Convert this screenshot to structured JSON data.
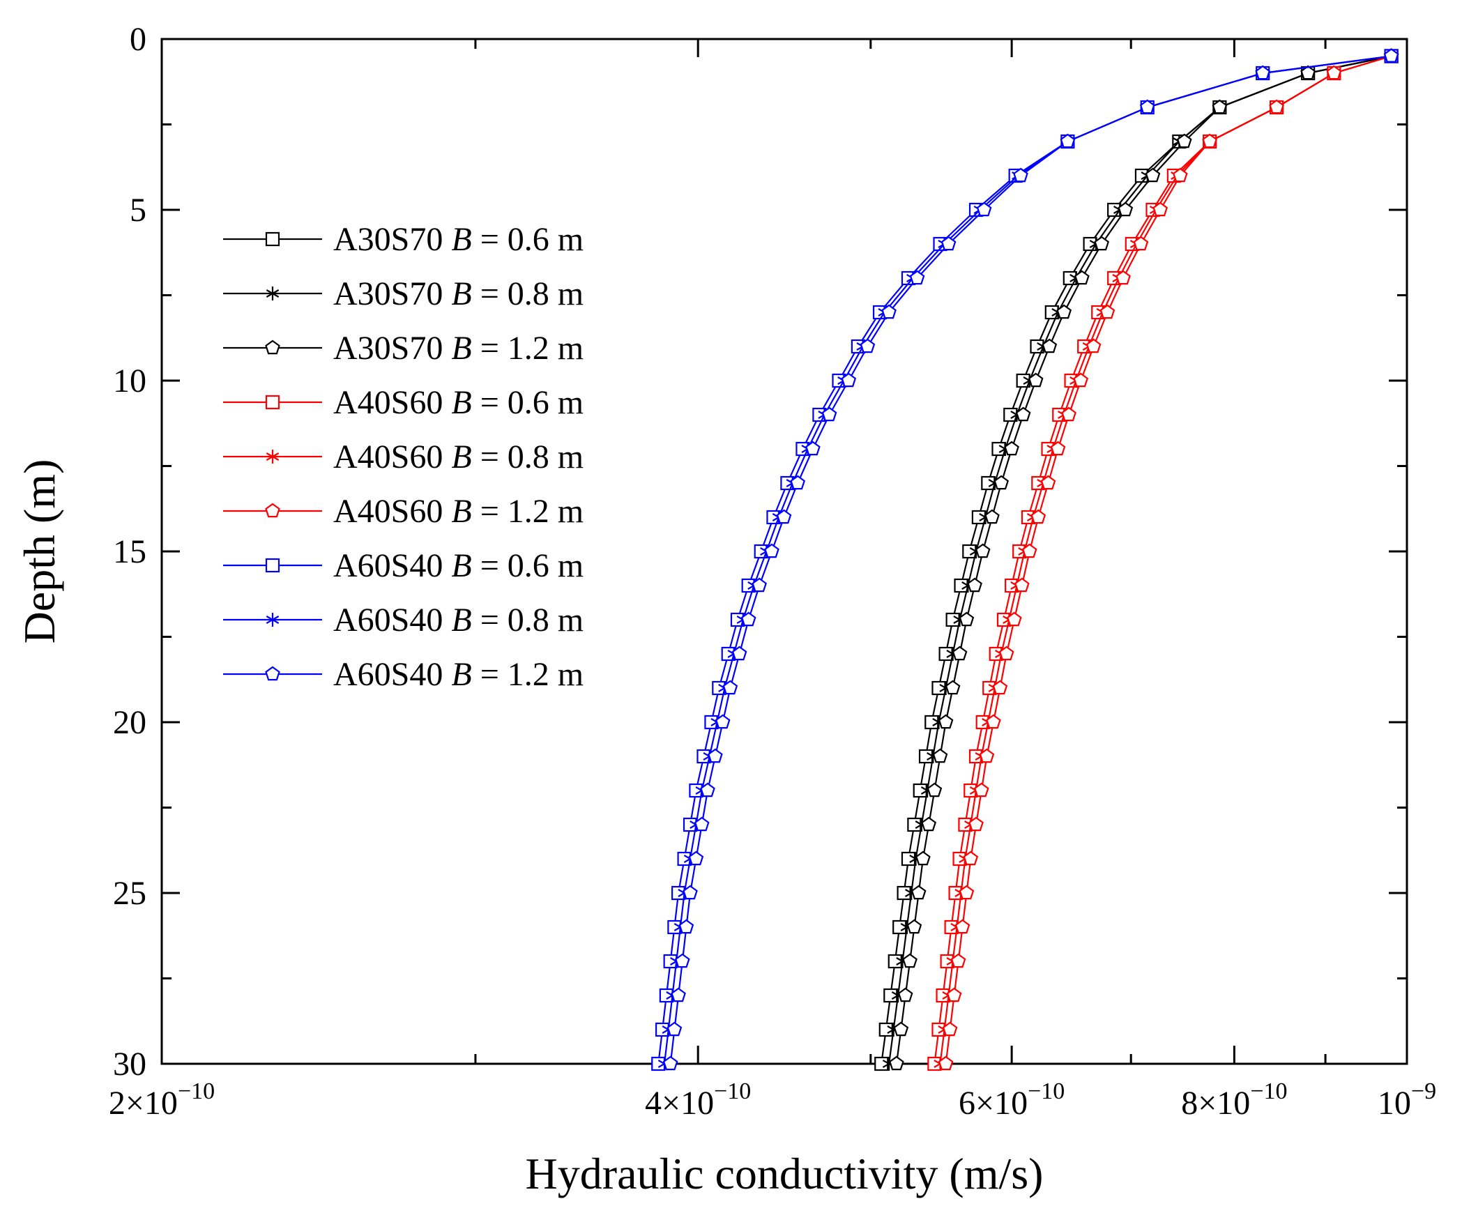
{
  "chart_data": {
    "type": "line",
    "title": "",
    "xlabel": "Hydraulic conductivity (m/s)",
    "ylabel": "Depth (m)",
    "xscale": "log",
    "xlim": [
      2e-10,
      1e-09
    ],
    "ylim": [
      0,
      30
    ],
    "y_inverted": true,
    "x_ticks": [
      {
        "value": 2e-10,
        "mantissa": "2",
        "exp": "−10"
      },
      {
        "value": 4e-10,
        "mantissa": "4",
        "exp": "−10"
      },
      {
        "value": 6e-10,
        "mantissa": "6",
        "exp": "−10"
      },
      {
        "value": 8e-10,
        "mantissa": "8",
        "exp": "−10"
      },
      {
        "value": 1e-09,
        "mantissa": "",
        "exp": "−9"
      }
    ],
    "y_ticks": [
      "0",
      "5",
      "10",
      "15",
      "20",
      "25",
      "30"
    ],
    "legend_position": "upper-left",
    "depth": [
      0.5,
      1,
      2,
      3,
      4,
      5,
      6,
      7,
      8,
      9,
      10,
      11,
      12,
      13,
      14,
      15,
      16,
      17,
      18,
      19,
      20,
      21,
      22,
      23,
      24,
      25,
      26,
      27,
      28,
      29,
      30
    ],
    "series": [
      {
        "name": "A30S70",
        "b": "0.6 m",
        "color": "#000000",
        "marker": "square",
        "values": [
          9.8e-10,
          8.8e-10,
          7.85e-10,
          7.45e-10,
          7.1e-10,
          6.85e-10,
          6.64e-10,
          6.47e-10,
          6.32e-10,
          6.2e-10,
          6.09e-10,
          5.99e-10,
          5.9e-10,
          5.82e-10,
          5.75e-10,
          5.68e-10,
          5.62e-10,
          5.56e-10,
          5.51e-10,
          5.46e-10,
          5.41e-10,
          5.37e-10,
          5.33e-10,
          5.29e-10,
          5.25e-10,
          5.22e-10,
          5.19e-10,
          5.16e-10,
          5.13e-10,
          5.1e-10,
          5.07e-10
        ]
      },
      {
        "name": "A30S70",
        "b": "0.8 m",
        "color": "#000000",
        "marker": "star",
        "values": [
          9.8e-10,
          8.8e-10,
          7.85e-10,
          7.45e-10,
          7.15e-10,
          6.9e-10,
          6.69e-10,
          6.52e-10,
          6.37e-10,
          6.25e-10,
          6.14e-10,
          6.04e-10,
          5.95e-10,
          5.87e-10,
          5.8e-10,
          5.73e-10,
          5.67e-10,
          5.61e-10,
          5.56e-10,
          5.51e-10,
          5.46e-10,
          5.42e-10,
          5.38e-10,
          5.34e-10,
          5.3e-10,
          5.27e-10,
          5.24e-10,
          5.21e-10,
          5.18e-10,
          5.15e-10,
          5.12e-10
        ]
      },
      {
        "name": "A30S70",
        "b": "1.2 m",
        "color": "#000000",
        "marker": "pentagon",
        "values": [
          9.8e-10,
          8.8e-10,
          7.85e-10,
          7.5e-10,
          7.2e-10,
          6.95e-10,
          6.74e-10,
          6.57e-10,
          6.42e-10,
          6.3e-10,
          6.19e-10,
          6.09e-10,
          6e-10,
          5.92e-10,
          5.85e-10,
          5.78e-10,
          5.72e-10,
          5.66e-10,
          5.61e-10,
          5.56e-10,
          5.51e-10,
          5.47e-10,
          5.43e-10,
          5.39e-10,
          5.35e-10,
          5.32e-10,
          5.29e-10,
          5.26e-10,
          5.23e-10,
          5.2e-10,
          5.17e-10
        ]
      },
      {
        "name": "A40S60",
        "b": "0.6 m",
        "color": "#ff0000",
        "marker": "square",
        "values": [
          9.8e-10,
          9.1e-10,
          8.45e-10,
          7.75e-10,
          7.4e-10,
          7.2e-10,
          7.01e-10,
          6.85e-10,
          6.71e-10,
          6.59e-10,
          6.48e-10,
          6.38e-10,
          6.29e-10,
          6.21e-10,
          6.13e-10,
          6.06e-10,
          6e-10,
          5.94e-10,
          5.88e-10,
          5.83e-10,
          5.78e-10,
          5.73e-10,
          5.69e-10,
          5.65e-10,
          5.61e-10,
          5.58e-10,
          5.55e-10,
          5.52e-10,
          5.49e-10,
          5.46e-10,
          5.43e-10
        ]
      },
      {
        "name": "A40S60",
        "b": "0.8 m",
        "color": "#ff0000",
        "marker": "star",
        "values": [
          9.8e-10,
          9.1e-10,
          8.45e-10,
          7.75e-10,
          7.43e-10,
          7.23e-10,
          7.05e-10,
          6.89e-10,
          6.75e-10,
          6.63e-10,
          6.52e-10,
          6.42e-10,
          6.33e-10,
          6.25e-10,
          6.17e-10,
          6.1e-10,
          6.04e-10,
          5.98e-10,
          5.92e-10,
          5.87e-10,
          5.82e-10,
          5.77e-10,
          5.73e-10,
          5.69e-10,
          5.65e-10,
          5.62e-10,
          5.59e-10,
          5.56e-10,
          5.53e-10,
          5.5e-10,
          5.47e-10
        ]
      },
      {
        "name": "A40S60",
        "b": "1.2 m",
        "color": "#ff0000",
        "marker": "pentagon",
        "values": [
          9.8e-10,
          9.1e-10,
          8.45e-10,
          7.75e-10,
          7.46e-10,
          7.27e-10,
          7.09e-10,
          6.93e-10,
          6.79e-10,
          6.67e-10,
          6.56e-10,
          6.46e-10,
          6.37e-10,
          6.29e-10,
          6.21e-10,
          6.14e-10,
          6.08e-10,
          6.02e-10,
          5.96e-10,
          5.91e-10,
          5.86e-10,
          5.81e-10,
          5.77e-10,
          5.73e-10,
          5.69e-10,
          5.66e-10,
          5.63e-10,
          5.6e-10,
          5.57e-10,
          5.54e-10,
          5.51e-10
        ]
      },
      {
        "name": "A60S40",
        "b": "0.6 m",
        "color": "#0000ff",
        "marker": "square",
        "values": [
          9.8e-10,
          8.3e-10,
          7.15e-10,
          6.45e-10,
          6.03e-10,
          5.73e-10,
          5.47e-10,
          5.25e-10,
          5.06e-10,
          4.92e-10,
          4.8e-10,
          4.68e-10,
          4.58e-10,
          4.49e-10,
          4.41e-10,
          4.34e-10,
          4.27e-10,
          4.21e-10,
          4.16e-10,
          4.11e-10,
          4.07e-10,
          4.03e-10,
          3.99e-10,
          3.96e-10,
          3.93e-10,
          3.9e-10,
          3.88e-10,
          3.86e-10,
          3.84e-10,
          3.82e-10,
          3.8e-10
        ]
      },
      {
        "name": "A60S40",
        "b": "0.8 m",
        "color": "#0000ff",
        "marker": "star",
        "values": [
          9.8e-10,
          8.3e-10,
          7.15e-10,
          6.45e-10,
          6.05e-10,
          5.76e-10,
          5.5e-10,
          5.28e-10,
          5.09e-10,
          4.95e-10,
          4.83e-10,
          4.71e-10,
          4.61e-10,
          4.52e-10,
          4.44e-10,
          4.37e-10,
          4.3e-10,
          4.24e-10,
          4.19e-10,
          4.14e-10,
          4.1e-10,
          4.06e-10,
          4.02e-10,
          3.99e-10,
          3.96e-10,
          3.93e-10,
          3.91e-10,
          3.89e-10,
          3.87e-10,
          3.85e-10,
          3.83e-10
        ]
      },
      {
        "name": "A60S40",
        "b": "1.2 m",
        "color": "#0000ff",
        "marker": "pentagon",
        "values": [
          9.8e-10,
          8.3e-10,
          7.15e-10,
          6.45e-10,
          6.07e-10,
          5.79e-10,
          5.53e-10,
          5.31e-10,
          5.12e-10,
          4.98e-10,
          4.86e-10,
          4.74e-10,
          4.64e-10,
          4.55e-10,
          4.47e-10,
          4.4e-10,
          4.33e-10,
          4.27e-10,
          4.22e-10,
          4.17e-10,
          4.13e-10,
          4.09e-10,
          4.05e-10,
          4.02e-10,
          3.99e-10,
          3.96e-10,
          3.94e-10,
          3.92e-10,
          3.9e-10,
          3.88e-10,
          3.86e-10
        ]
      }
    ]
  }
}
